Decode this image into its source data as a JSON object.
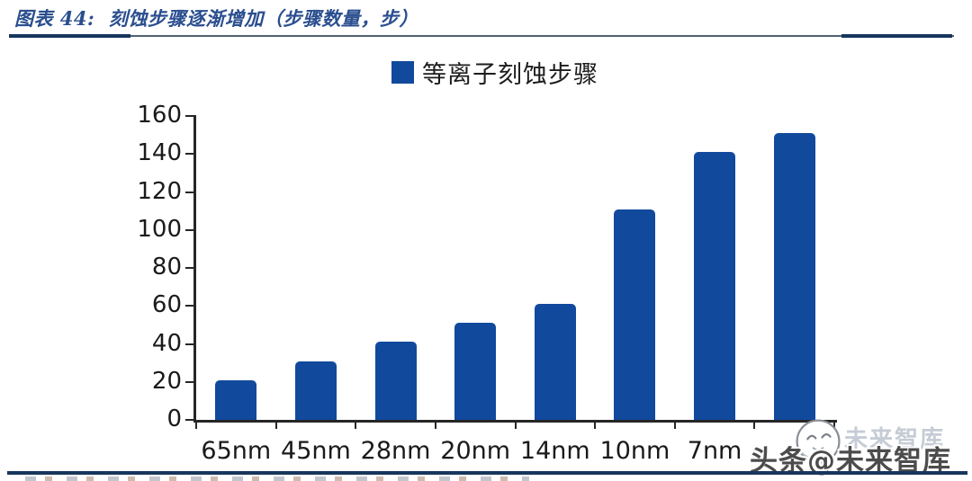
{
  "figure": {
    "title": "图表 44:  刻蚀步骤逐渐增加（步骤数量，步）",
    "legend_label": "等离子刻蚀步骤"
  },
  "watermark": {
    "main_text": "头条@未来智库",
    "ghost_text": "未来智库"
  },
  "colors": {
    "bar": "#11499D",
    "title": "#2A4E8F",
    "rule": "#17365D",
    "axis": "#262626"
  },
  "chart_data": {
    "type": "bar",
    "title": "刻蚀步骤逐渐增加（步骤数量，步）",
    "legend": [
      "等离子刻蚀步骤"
    ],
    "legend_position": "top-center",
    "categories": [
      "65nm",
      "45nm",
      "28nm",
      "20nm",
      "14nm",
      "10nm",
      "7nm",
      ""
    ],
    "values": [
      21,
      31,
      41,
      51,
      61,
      111,
      141,
      151
    ],
    "xlabel": "",
    "ylabel": "",
    "ylim": [
      0,
      160
    ],
    "yticks": [
      0,
      20,
      40,
      60,
      80,
      100,
      120,
      140,
      160
    ],
    "grid": false,
    "notes": "Last x-axis category label is obscured by the 头条@未来智库 watermark in the source image"
  }
}
